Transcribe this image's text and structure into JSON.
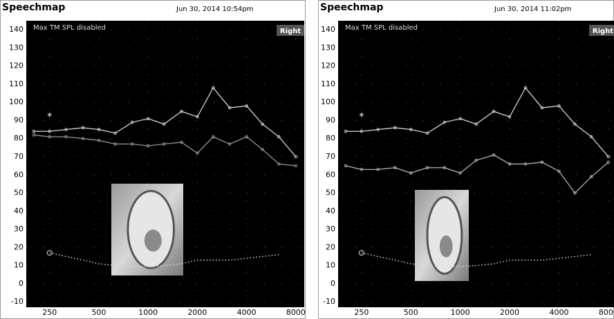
{
  "chart_data": [
    {
      "type": "line",
      "title": "Speechmap",
      "subtitle": "Jun 30, 2014 10:54pm",
      "annotations": [
        "Max TM SPL disabled",
        "Right"
      ],
      "marker_text": {
        "text": "*",
        "x": 250,
        "y": 93
      },
      "x": [
        200,
        250,
        315,
        400,
        500,
        630,
        800,
        1000,
        1250,
        1600,
        2000,
        2500,
        3150,
        4000,
        5000,
        6300,
        8000
      ],
      "xscale": "log",
      "xlim": [
        180,
        9000
      ],
      "xticks": [
        250,
        500,
        1000,
        2000,
        4000,
        8000
      ],
      "ylim": [
        -13,
        145
      ],
      "yticks": [
        -10,
        0,
        10,
        20,
        30,
        40,
        50,
        60,
        70,
        80,
        90,
        100,
        110,
        120,
        130,
        140
      ],
      "grid": true,
      "series": [
        {
          "color": "#c8c8c8",
          "markers": true,
          "values": [
            84,
            84,
            85,
            86,
            85,
            83,
            89,
            91,
            88,
            95,
            92,
            108,
            97,
            98,
            88,
            81,
            70
          ]
        },
        {
          "color": "#8c8c8c",
          "markers": true,
          "values": [
            82,
            81,
            81,
            80,
            79,
            77,
            77,
            76,
            77,
            78,
            72,
            81,
            77,
            81,
            74,
            66,
            65
          ]
        },
        {
          "color": "#dddddd",
          "dash": "dotted",
          "start_marker": "circle",
          "values": [
            null,
            17,
            15,
            13,
            11,
            10,
            9.5,
            9.5,
            10,
            11,
            13,
            13,
            13,
            14,
            15,
            16,
            null
          ]
        }
      ]
    },
    {
      "type": "line",
      "title": "Speechmap",
      "subtitle": "Jun 30, 2014 11:02pm",
      "annotations": [
        "Max TM SPL disabled",
        "Right"
      ],
      "marker_text": {
        "text": "*",
        "x": 250,
        "y": 93
      },
      "x": [
        200,
        250,
        315,
        400,
        500,
        630,
        800,
        1000,
        1250,
        1600,
        2000,
        2500,
        3150,
        4000,
        5000,
        6300,
        8000
      ],
      "xscale": "log",
      "xlim": [
        180,
        9000
      ],
      "xticks": [
        250,
        500,
        1000,
        2000,
        4000,
        8000
      ],
      "ylim": [
        -13,
        145
      ],
      "yticks": [
        -10,
        0,
        10,
        20,
        30,
        40,
        50,
        60,
        70,
        80,
        90,
        100,
        110,
        120,
        130,
        140
      ],
      "grid": true,
      "series": [
        {
          "color": "#c8c8c8",
          "markers": true,
          "values": [
            84,
            84,
            85,
            86,
            85,
            83,
            89,
            91,
            88,
            95,
            92,
            108,
            97,
            98,
            88,
            81,
            70
          ]
        },
        {
          "color": "#a8a8a8",
          "markers": true,
          "values": [
            65,
            63,
            63,
            64,
            61,
            64,
            64,
            61,
            68,
            71,
            66,
            66,
            67,
            62,
            50,
            59,
            67
          ]
        },
        {
          "color": "#dddddd",
          "dash": "dotted",
          "start_marker": "circle",
          "values": [
            null,
            17,
            15,
            13,
            11,
            10,
            9.5,
            9.5,
            10,
            11,
            13,
            13,
            13,
            14,
            15,
            16,
            null
          ]
        }
      ]
    }
  ]
}
